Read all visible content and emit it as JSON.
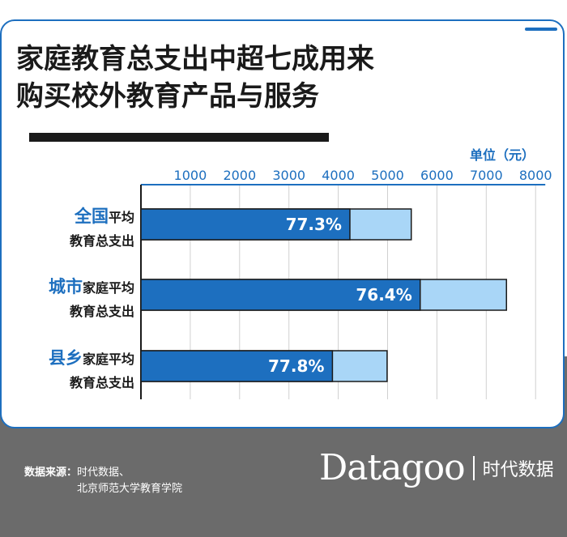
{
  "title_lines": [
    "家庭教育总支出中超七成用来",
    "购买校外教育产品与服务"
  ],
  "unit_label": "单位（元）",
  "source": {
    "label": "数据来源：",
    "line1": "时代数据、",
    "line2": "北京师范大学教育学院"
  },
  "brand": {
    "name": "Datagoo",
    "cn": "时代数据"
  },
  "colors": {
    "primary": "#1d6fbf",
    "light": "#a9d6f7",
    "text": "#1a1a1a",
    "footer": "#6b6b6b"
  },
  "chart_data": {
    "type": "bar",
    "orientation": "horizontal",
    "stacked": true,
    "xlim": [
      0,
      8000
    ],
    "ticks": [
      1000,
      2000,
      3000,
      4000,
      5000,
      6000,
      7000,
      8000
    ],
    "unit": "单位（元）",
    "categories": [
      {
        "bold": "全国",
        "rest": "平均",
        "line2": "教育总支出",
        "total": 5480,
        "share_value": 4236,
        "share_label": "77.3%"
      },
      {
        "bold": "城市",
        "rest": "家庭平均",
        "line2": "教育总支出",
        "total": 7410,
        "share_value": 5661,
        "share_label": "76.4%"
      },
      {
        "bold": "县乡",
        "rest": "家庭平均",
        "line2": "教育总支出",
        "total": 4990,
        "share_value": 3882,
        "share_label": "77.8%"
      }
    ]
  }
}
